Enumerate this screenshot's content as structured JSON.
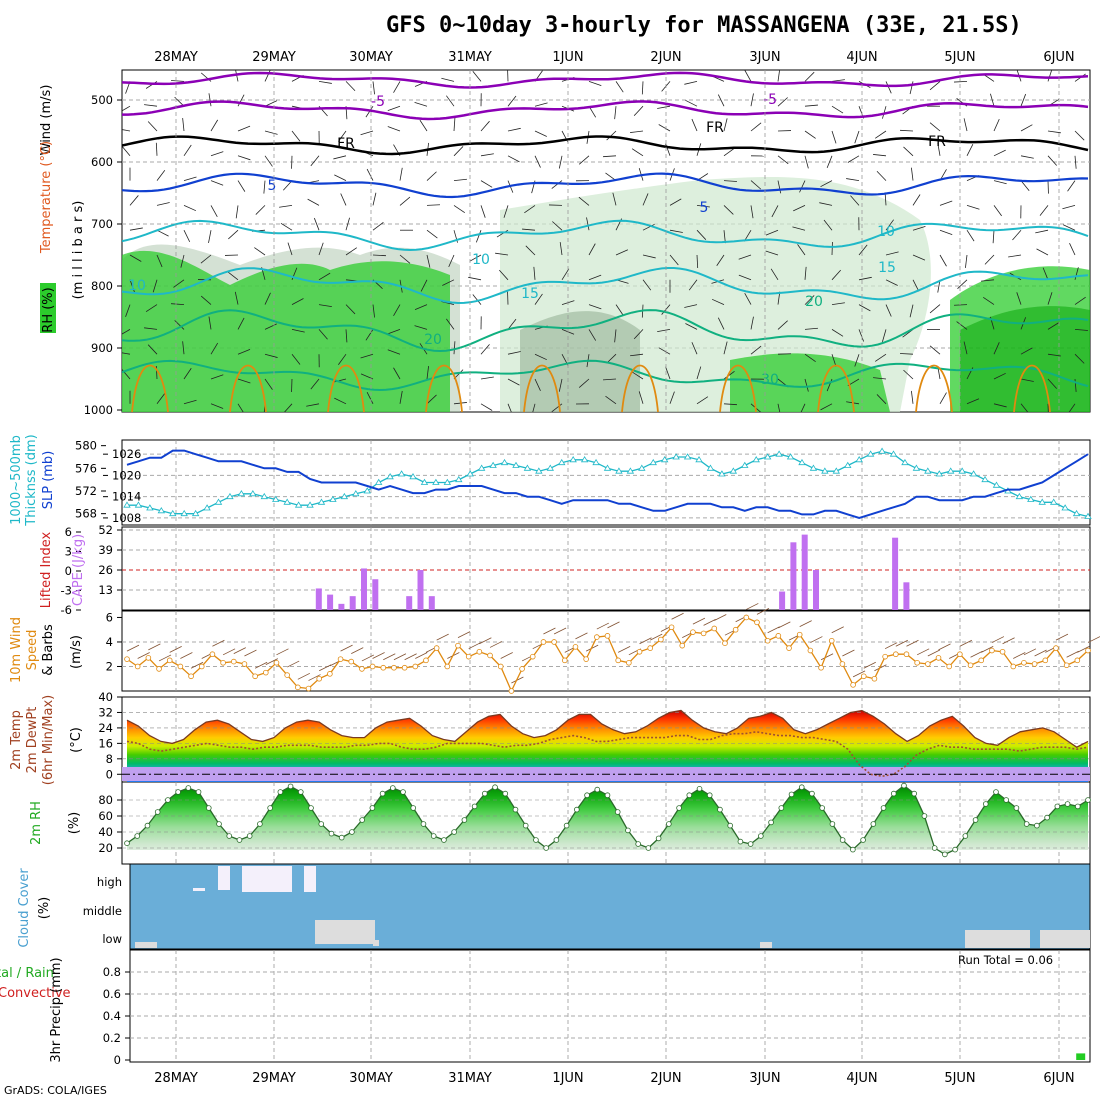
{
  "title": "GFS 0~10day 3-hourly for MASSANGENA (33E, 21.5S)",
  "footer": "GrADS: COLA/IGES",
  "days": [
    "28MAY",
    "29MAY",
    "30MAY",
    "31MAY",
    "1JUN",
    "2JUN",
    "3JUN",
    "4JUN",
    "5JUN",
    "6JUN"
  ],
  "colors": {
    "purple": "#8b00b5",
    "blue": "#1040d0",
    "cyan": "#1fb8c8",
    "teal": "#10b080",
    "orange": "#e08a10",
    "magenta": "#d000a0",
    "black": "#000000",
    "rh_green": "#2ccc2c",
    "cloud_blue": "#6aaed8",
    "precip_green": "#22cc22",
    "cape_purple": "#c070f0",
    "lifted_red": "#d02020"
  },
  "panel_labels": {
    "upper_wind": "Wind (m/s)",
    "upper_temp": "Temperature (°C)",
    "upper_rh": "RH (%)",
    "upper_press": "(m i l l i b a r s)",
    "thick": "1000~500mb",
    "thick2": "Thicknss (dm)",
    "slp": "SLP (mb)",
    "lifted": "Lifted Index",
    "cape": "CAPE (J/kg)",
    "wind10_a": "10m Wind",
    "wind10_b": "Speed",
    "wind10_c": "& Barbs",
    "wind10_unit": "(m/s)",
    "temp_a": "2m Temp",
    "temp_b": "2m DewPt",
    "temp_c": "(6hr Min/Max)",
    "temp_unit": "(°C)",
    "rh2m": "2m RH",
    "rh2m_unit": "(%)",
    "cloud": "Cloud Cover",
    "cloud_unit": "(%)",
    "precip_a": "tal / Rain",
    "precip_b": "Convective",
    "precip_c": "3hr Precip (mm)",
    "run_total": "Run Total = 0.06"
  },
  "contour_labels": {
    "purple": [
      "-5",
      "-5"
    ],
    "black": [
      "FR",
      "FR",
      "FR"
    ],
    "blue": [
      "5",
      "5"
    ],
    "cyan": [
      "10",
      "10",
      "10",
      "15",
      "15"
    ],
    "teal": [
      "20",
      "20",
      "30"
    ]
  },
  "chart_data": [
    {
      "type": "heatmap",
      "title": "",
      "ylabel": "m i l l i b a r s",
      "yticks": [
        "500",
        "600",
        "700",
        "800",
        "900",
        "1000"
      ],
      "ylim": [
        1000,
        450
      ],
      "series_labels": [
        "Wind (m/s)",
        "Temperature (°C)",
        "RH (%)"
      ]
    },
    {
      "type": "line",
      "y_left_ticks": [
        "568",
        "572",
        "576",
        "580"
      ],
      "y_right_ticks": [
        "1008",
        "1014",
        "1020",
        "1026"
      ],
      "series": [
        {
          "name": "SLP (mb)",
          "axis": "right",
          "values": [
            1023,
            1024,
            1025,
            1025,
            1027,
            1027,
            1026,
            1025,
            1024,
            1024,
            1024,
            1023,
            1022,
            1022,
            1021,
            1021,
            1019,
            1018,
            1018,
            1018,
            1018,
            1017,
            1016,
            1017,
            1016,
            1015,
            1015,
            1016,
            1016,
            1017,
            1017,
            1017,
            1016,
            1015,
            1015,
            1014,
            1014,
            1013,
            1012,
            1013,
            1013,
            1013,
            1013,
            1012,
            1012,
            1011,
            1010,
            1010,
            1011,
            1012,
            1012,
            1012,
            1011,
            1011,
            1010,
            1011,
            1011,
            1010,
            1010,
            1009,
            1009,
            1010,
            1010,
            1009,
            1008,
            1009,
            1010,
            1011,
            1012,
            1014,
            1014,
            1013,
            1013,
            1013,
            1014,
            1014,
            1015,
            1016,
            1016,
            1017,
            1018,
            1020,
            1022,
            1024,
            1026
          ]
        },
        {
          "name": "1000~500mb Thicknss (dm)",
          "axis": "left",
          "values": [
            569.5,
            569.5,
            569,
            568.5,
            568,
            568,
            568,
            569,
            570,
            571,
            571.5,
            571.5,
            571,
            570.5,
            570,
            569.5,
            569.5,
            570,
            570.5,
            571,
            571.5,
            572,
            573.5,
            574.5,
            575,
            574.5,
            573.5,
            573.5,
            573.5,
            574,
            575,
            576,
            576.5,
            577,
            576.5,
            576,
            575.5,
            576,
            577,
            577.5,
            577.5,
            577,
            576,
            575.5,
            575.5,
            576,
            577,
            577.5,
            578,
            578,
            577.5,
            576,
            575,
            575.5,
            576.5,
            577.5,
            578,
            578.5,
            578,
            577,
            576,
            575.5,
            575.5,
            576.5,
            577.5,
            578.5,
            579,
            578.5,
            577,
            576,
            575.5,
            575,
            575.5,
            575.5,
            575,
            574,
            573,
            572,
            571,
            570.5,
            570,
            570,
            569,
            568,
            567.5
          ]
        }
      ]
    },
    {
      "type": "bar",
      "y_left_ticks": [
        "6",
        "3",
        "0",
        "-3",
        "-6"
      ],
      "y_right_ticks": [
        "13",
        "26",
        "39",
        "52"
      ],
      "series": [
        {
          "name": "CAPE (J/kg)",
          "values": [
            0,
            0,
            0,
            0,
            0,
            0,
            0,
            0,
            0,
            0,
            0,
            0,
            0,
            0,
            0,
            0,
            14,
            10,
            4,
            9,
            27,
            20,
            0,
            0,
            9,
            26,
            9,
            0,
            0,
            0,
            0,
            0,
            0,
            0,
            0,
            0,
            0,
            0,
            0,
            0,
            0,
            0,
            0,
            0,
            0,
            0,
            0,
            0,
            0,
            0,
            0,
            0,
            0,
            0,
            0,
            0,
            0,
            12,
            44,
            49,
            26,
            0,
            0,
            0,
            0,
            0,
            0,
            47,
            18,
            0,
            0,
            0,
            0,
            0,
            0,
            0,
            0,
            0,
            0,
            0,
            0,
            0,
            0,
            0,
            0
          ]
        },
        {
          "name": "Lifted Index",
          "values": [
            null,
            null,
            null,
            null,
            null,
            null,
            null,
            null,
            null,
            null,
            null,
            null,
            null,
            null,
            null,
            null,
            null,
            null,
            null,
            null,
            null,
            null,
            null,
            null,
            null,
            null,
            null,
            null,
            null,
            null,
            null,
            null,
            null,
            null,
            null,
            null,
            null,
            null,
            null,
            null,
            null,
            null,
            null,
            null,
            null,
            null,
            null,
            null,
            null,
            null,
            null,
            null,
            null,
            null,
            null,
            null,
            null,
            null,
            null,
            null,
            null,
            null,
            null,
            null,
            null,
            null,
            null,
            null,
            null,
            null,
            null,
            null,
            null,
            null,
            null,
            null,
            null,
            null,
            null,
            null,
            null,
            null,
            null,
            null,
            null
          ]
        }
      ]
    },
    {
      "type": "line",
      "yticks": [
        "2",
        "4",
        "6"
      ],
      "ylim": [
        0,
        6
      ],
      "series": [
        {
          "name": "10m Wind Speed",
          "values": [
            2.6,
            2,
            2.7,
            1.8,
            2.5,
            2,
            1.2,
            2,
            3,
            2.3,
            2.4,
            2.2,
            1.2,
            1.5,
            2.3,
            1.3,
            0.3,
            0.2,
            1,
            1.4,
            2.6,
            2.4,
            1.8,
            2,
            1.9,
            1.9,
            1.9,
            2,
            2.5,
            3.5,
            2,
            3.7,
            2.8,
            3.2,
            2.9,
            2,
            0,
            1.8,
            2.8,
            4,
            4,
            2.5,
            3.6,
            2.6,
            4.4,
            4.5,
            2.5,
            2.3,
            3.2,
            3.5,
            4.2,
            5.2,
            3.7,
            4.8,
            4.7,
            5.1,
            3.9,
            5,
            6,
            5.6,
            4.1,
            4.5,
            3.5,
            4.6,
            3.3,
            1.9,
            4.1,
            2.2,
            0.5,
            1.2,
            1,
            2.8,
            3,
            3,
            2.3,
            2.2,
            2.7,
            2,
            3,
            2.1,
            2.5,
            3.3,
            3.2,
            2,
            2.3,
            2.2,
            2.5,
            3.5,
            2.1,
            2.5,
            3.3
          ]
        }
      ]
    },
    {
      "type": "area",
      "yticks": [
        "0",
        "8",
        "16",
        "24",
        "32",
        "40"
      ],
      "ylim": [
        -4,
        40
      ],
      "series": [
        {
          "name": "2m Temp",
          "values": [
            28,
            25,
            20,
            17,
            16,
            18,
            23,
            27,
            28,
            26,
            22,
            18,
            17,
            19,
            24,
            27,
            28,
            27,
            23,
            20,
            19,
            19,
            24,
            27,
            28,
            29,
            25,
            20,
            18,
            17,
            22,
            27,
            30,
            31,
            25,
            21,
            19,
            20,
            23,
            28,
            31,
            31,
            26,
            23,
            21,
            22,
            25,
            29,
            32,
            33,
            28,
            24,
            22,
            21,
            24,
            29,
            30,
            32,
            29,
            23,
            21,
            23,
            26,
            29,
            32,
            33,
            30,
            26,
            21,
            17,
            20,
            25,
            28,
            30,
            25,
            19,
            16,
            15,
            19,
            22,
            23,
            24,
            22,
            18,
            14,
            17
          ]
        },
        {
          "name": "2m DewPt",
          "values": [
            17,
            16,
            13,
            12,
            13,
            14,
            15,
            16,
            15,
            14,
            14,
            13,
            14,
            14,
            15,
            15,
            15,
            14,
            14,
            14,
            15,
            15,
            16,
            16,
            14,
            13,
            13,
            14,
            16,
            16,
            16,
            16,
            15,
            14,
            15,
            15,
            16,
            18,
            19,
            20,
            19,
            17,
            17,
            18,
            19,
            19,
            19,
            19,
            20,
            20,
            18,
            18,
            20,
            21,
            21,
            22,
            21,
            20,
            20,
            19,
            19,
            18,
            17,
            13,
            5,
            0,
            -1,
            0,
            4,
            10,
            13,
            15,
            14,
            14,
            13,
            13,
            13,
            13,
            12,
            13,
            14,
            14,
            14,
            13,
            14
          ]
        }
      ]
    },
    {
      "type": "area",
      "yticks": [
        "20",
        "40",
        "60",
        "80"
      ],
      "ylim": [
        0,
        100
      ],
      "series": [
        {
          "name": "2m RH",
          "values": [
            26,
            35,
            48,
            65,
            80,
            90,
            95,
            90,
            70,
            50,
            35,
            30,
            35,
            50,
            70,
            90,
            97,
            90,
            70,
            50,
            38,
            33,
            40,
            55,
            70,
            88,
            95,
            90,
            70,
            50,
            35,
            30,
            40,
            55,
            72,
            88,
            96,
            88,
            68,
            48,
            30,
            20,
            30,
            48,
            68,
            86,
            93,
            86,
            65,
            42,
            25,
            20,
            32,
            50,
            70,
            86,
            94,
            86,
            68,
            48,
            28,
            25,
            35,
            52,
            70,
            87,
            96,
            88,
            70,
            50,
            30,
            18,
            30,
            50,
            70,
            88,
            98,
            88,
            60,
            20,
            12,
            18,
            35,
            55,
            75,
            90,
            80,
            70,
            50,
            48,
            58,
            72,
            75,
            72,
            80
          ]
        }
      ]
    },
    {
      "type": "heatmap",
      "title": "",
      "y_levels": [
        "high",
        "middle",
        "low"
      ],
      "series": [
        {
          "name": "Cloud Cover",
          "values": []
        }
      ]
    },
    {
      "type": "bar",
      "yticks": [
        "0",
        "0.2",
        "0.4",
        "0.6",
        "0.8"
      ],
      "ylim": [
        0,
        1
      ],
      "series": [
        {
          "name": "3hr Precip (mm)",
          "values": [
            0,
            0,
            0,
            0,
            0,
            0,
            0,
            0,
            0,
            0,
            0,
            0,
            0,
            0,
            0,
            0,
            0,
            0,
            0,
            0,
            0,
            0,
            0,
            0,
            0,
            0,
            0,
            0,
            0,
            0,
            0,
            0,
            0,
            0,
            0,
            0,
            0,
            0,
            0,
            0,
            0,
            0,
            0,
            0,
            0,
            0,
            0,
            0,
            0,
            0,
            0,
            0,
            0,
            0,
            0,
            0,
            0,
            0,
            0,
            0,
            0,
            0,
            0,
            0,
            0,
            0,
            0,
            0,
            0,
            0,
            0,
            0,
            0,
            0,
            0,
            0,
            0,
            0,
            0,
            0,
            0,
            0,
            0,
            0.06,
            0,
            0
          ]
        }
      ]
    }
  ]
}
